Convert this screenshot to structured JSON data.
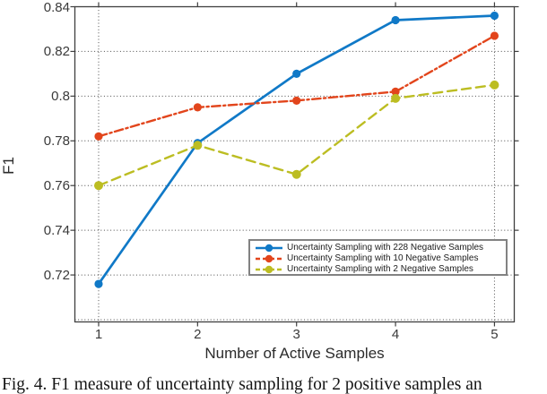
{
  "figure": {
    "caption": "Fig. 4. F1 measure of uncertainty sampling for 2 positive samples an"
  },
  "chart_data": {
    "type": "line",
    "title": "",
    "xlabel": "Number of Active Samples",
    "ylabel": "F1",
    "x": [
      1,
      2,
      3,
      4,
      5
    ],
    "series": [
      {
        "name": "Uncertainty Sampling with 228 Negative Samples",
        "color": "#1079c7",
        "line_style": "solid",
        "marker": "circle",
        "values": [
          0.716,
          0.779,
          0.81,
          0.834,
          0.836
        ]
      },
      {
        "name": "Uncertainty Sampling with 10 Negative Samples",
        "color": "#e2451c",
        "line_style": "dashdot",
        "marker": "circle",
        "values": [
          0.782,
          0.795,
          0.798,
          0.802,
          0.827
        ]
      },
      {
        "name": "Uncertainty Sampling with 2 Negative Samples",
        "color": "#bcbd22",
        "line_style": "dashed",
        "marker": "circle",
        "values": [
          0.76,
          0.778,
          0.765,
          0.799,
          0.805
        ]
      }
    ],
    "xlim": [
      0.76,
      5.2
    ],
    "ylim": [
      0.699,
      0.84
    ],
    "xticks": [
      1,
      2,
      3,
      4,
      5
    ],
    "xtick_labels": [
      "1",
      "2",
      "3",
      "4",
      "5"
    ],
    "yticks": [
      0.72,
      0.74,
      0.76,
      0.78,
      0.8,
      0.82,
      0.84
    ],
    "ytick_labels": [
      "0.72",
      "0.74",
      "0.76",
      "0.78",
      "0.8",
      "0.82",
      "0.84"
    ],
    "y_gridlines": [
      0.7,
      0.72,
      0.74,
      0.76,
      0.78,
      0.8,
      0.82,
      0.84
    ],
    "x_gridlines": [
      1,
      5
    ],
    "grid": "dotted",
    "legend_position": "inside-lower-right",
    "axis_color": "#3f3f3f",
    "grid_color": "#4a4a4a",
    "legend_border_color": "#828282"
  }
}
